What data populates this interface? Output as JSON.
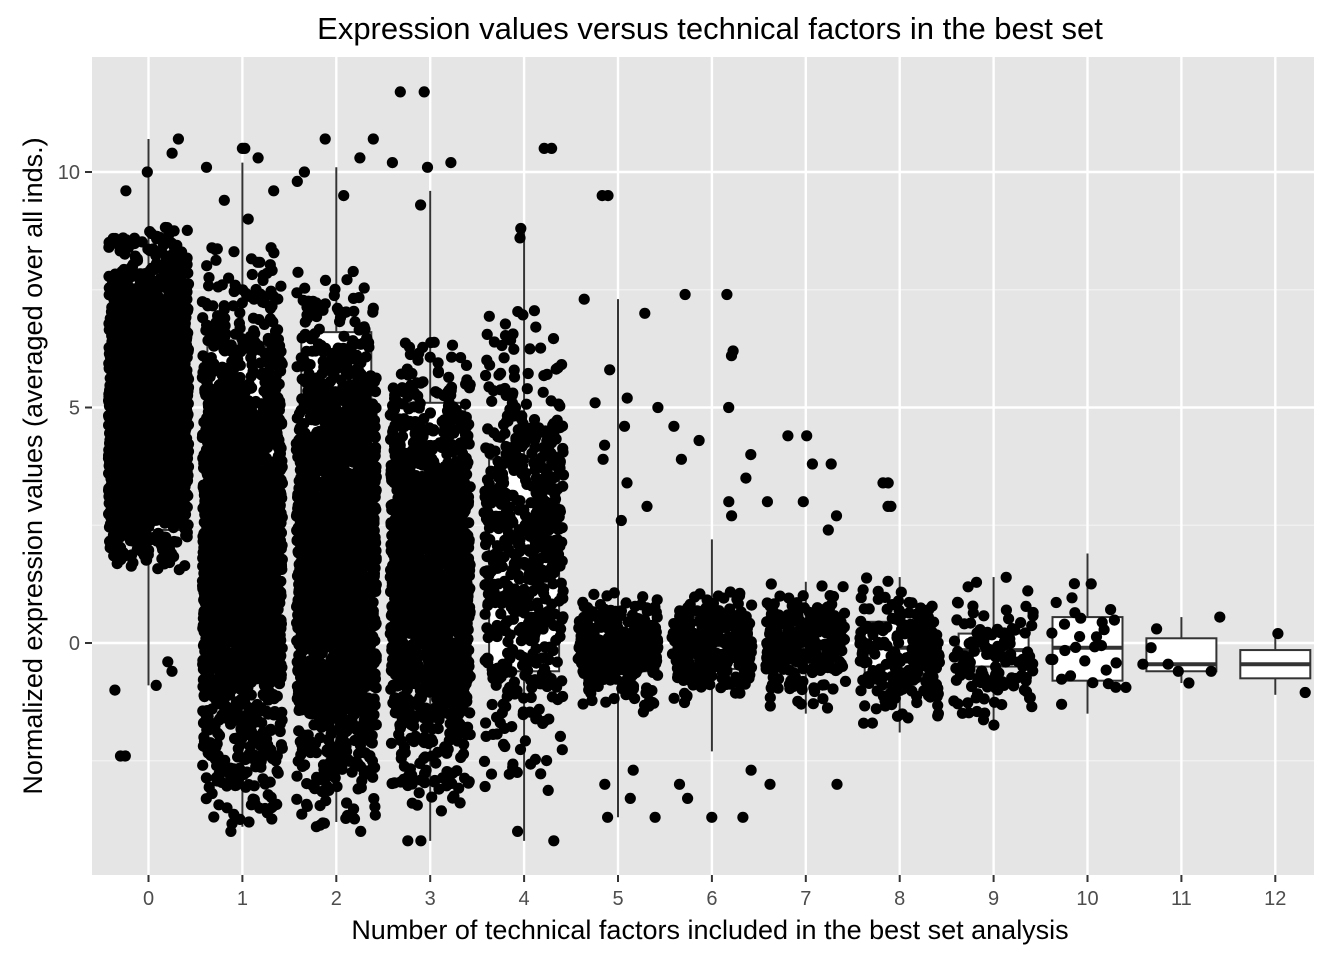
{
  "chart_data": {
    "type": "scatter",
    "subtype": "jittered points with boxplot overlay",
    "title": "Expression values versus technical factors in the best set",
    "xlabel": "Number of technical factors included in the best set analysis",
    "ylabel": "Normalized expression values (averaged over all inds.)",
    "categories": [
      "0",
      "1",
      "2",
      "3",
      "4",
      "5",
      "6",
      "7",
      "8",
      "9",
      "10",
      "11",
      "12"
    ],
    "x_ticks": [
      "0",
      "1",
      "2",
      "3",
      "4",
      "5",
      "6",
      "7",
      "8",
      "9",
      "10",
      "11",
      "12"
    ],
    "y_ticks": [
      0,
      5,
      10
    ],
    "y_tick_labels": [
      "0",
      "5",
      "10"
    ],
    "ylim": [
      -4.9,
      12.3
    ],
    "grid": true,
    "background": "#e5e5e5",
    "point_color": "#000000",
    "groups": [
      {
        "category": "0",
        "n": 2600,
        "q1": 2.4,
        "median": 4.9,
        "q3": 7.3,
        "whisker_low": -0.9,
        "whisker_high": 10.7,
        "main_range": [
          1.5,
          8.9
        ],
        "outlier_values": [
          10.7,
          10.4,
          10.0,
          9.6,
          -0.4,
          -0.9,
          -2.4,
          -2.4,
          -1.0,
          -0.6
        ]
      },
      {
        "category": "1",
        "n": 2200,
        "q1": 0.0,
        "median": 3.6,
        "q3": 6.3,
        "whisker_low": -3.9,
        "whisker_high": 10.2,
        "main_range": [
          -3.9,
          8.4
        ],
        "outlier_values": [
          10.5,
          10.5,
          10.1,
          10.3,
          9.6,
          9.4,
          9.0,
          -4.0,
          -3.8
        ]
      },
      {
        "category": "2",
        "n": 2200,
        "q1": 0.5,
        "median": 3.9,
        "q3": 6.6,
        "whisker_low": -3.8,
        "whisker_high": 10.1,
        "main_range": [
          -3.9,
          7.9
        ],
        "outlier_values": [
          10.7,
          10.7,
          10.3,
          10.0,
          9.8,
          9.5,
          -3.9,
          -4.0
        ]
      },
      {
        "category": "3",
        "n": 1600,
        "q1": -0.3,
        "median": 2.4,
        "q3": 5.1,
        "whisker_low": -4.2,
        "whisker_high": 9.6,
        "main_range": [
          -3.6,
          6.5
        ],
        "outlier_values": [
          11.7,
          11.7,
          10.2,
          10.2,
          10.1,
          9.3,
          -4.2,
          -4.2
        ]
      },
      {
        "category": "4",
        "n": 600,
        "q1": -0.6,
        "median": 1.6,
        "q3": 3.9,
        "whisker_low": -4.2,
        "whisker_high": 8.8,
        "main_range": [
          -3.2,
          7.2
        ],
        "outlier_values": [
          10.5,
          10.5,
          8.8,
          8.6,
          -4.0,
          -4.2
        ]
      },
      {
        "category": "5",
        "n": 320,
        "q1": -0.6,
        "median": -0.1,
        "q3": 0.6,
        "whisker_low": -3.7,
        "whisker_high": 7.3,
        "main_range": [
          -1.5,
          1.2
        ],
        "outlier_values": [
          9.5,
          9.5,
          7.3,
          7.0,
          5.8,
          5.2,
          5.1,
          5.0,
          4.6,
          4.2,
          3.9,
          3.4,
          2.9,
          2.6,
          -2.7,
          -3.0,
          -3.3,
          -3.7,
          -3.7
        ]
      },
      {
        "category": "6",
        "n": 300,
        "q1": -0.55,
        "median": -0.05,
        "q3": 0.55,
        "whisker_low": -2.3,
        "whisker_high": 2.2,
        "main_range": [
          -1.3,
          1.2
        ],
        "outlier_values": [
          7.4,
          7.4,
          6.2,
          6.1,
          5.0,
          4.6,
          4.3,
          4.0,
          3.9,
          3.5,
          3.0,
          2.7,
          -2.7,
          -3.0,
          -3.3,
          -3.7,
          -3.7
        ]
      },
      {
        "category": "7",
        "n": 260,
        "q1": -0.5,
        "median": -0.15,
        "q3": 0.4,
        "whisker_low": -1.5,
        "whisker_high": 1.3,
        "main_range": [
          -1.4,
          1.3
        ],
        "outlier_values": [
          4.4,
          4.4,
          3.8,
          3.8,
          3.0,
          3.0,
          2.7,
          2.4,
          -3.0,
          -3.0
        ]
      },
      {
        "category": "8",
        "n": 200,
        "q1": -0.65,
        "median": -0.1,
        "q3": 0.45,
        "whisker_low": -1.9,
        "whisker_high": 1.4,
        "main_range": [
          -1.9,
          1.4
        ],
        "outlier_values": [
          3.4,
          3.4,
          2.9,
          2.9
        ]
      },
      {
        "category": "9",
        "n": 130,
        "q1": -0.5,
        "median": -0.15,
        "q3": 0.2,
        "whisker_low": -1.8,
        "whisker_high": 1.4,
        "main_range": [
          -1.8,
          1.4
        ],
        "outlier_values": []
      },
      {
        "category": "10",
        "n": 30,
        "q1": -0.8,
        "median": -0.1,
        "q3": 0.55,
        "whisker_low": -1.5,
        "whisker_high": 1.9,
        "main_range": [
          -1.5,
          1.9
        ],
        "outlier_values": []
      },
      {
        "category": "11",
        "n": 8,
        "q1": -0.6,
        "median": -0.45,
        "q3": 0.1,
        "whisker_low": -0.85,
        "whisker_high": 0.55,
        "main_range": [
          -0.85,
          0.55
        ],
        "points": [
          0.55,
          0.3,
          -0.1,
          -0.45,
          -0.6,
          -0.85,
          -0.6,
          -0.45
        ]
      },
      {
        "category": "12",
        "n": 2,
        "q1": -0.75,
        "median": -0.45,
        "q3": -0.15,
        "whisker_low": -1.1,
        "whisker_high": 0.2,
        "main_range": [
          -1.1,
          0.2
        ],
        "points": [
          0.2,
          -1.05
        ]
      }
    ]
  }
}
